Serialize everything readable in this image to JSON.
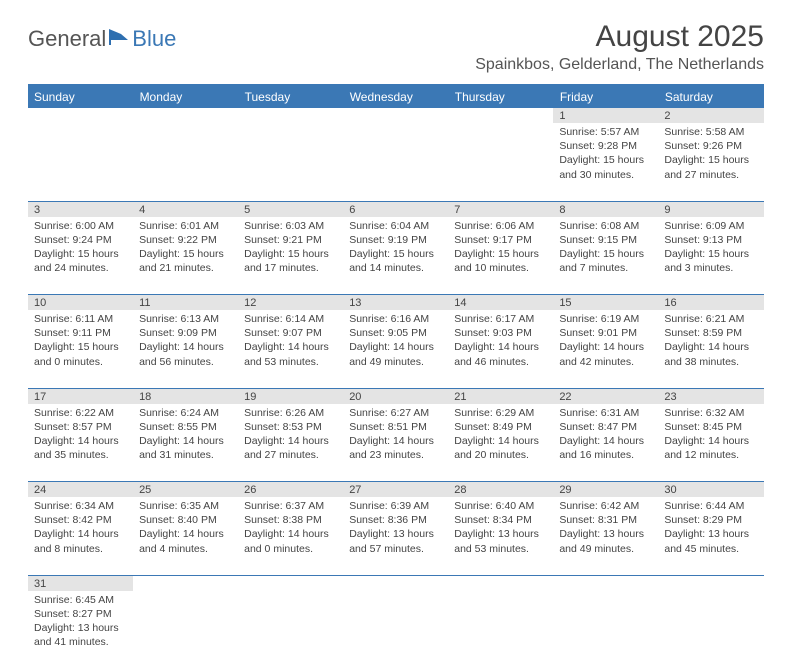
{
  "colors": {
    "header_blue": "#3b78b5",
    "daynum_bg": "#e4e4e4",
    "text": "#444444",
    "background": "#ffffff"
  },
  "logo": {
    "part1": "General",
    "part2": "Blue"
  },
  "title": "August 2025",
  "location": "Spainkbos, Gelderland, The Netherlands",
  "weekdays": [
    "Sunday",
    "Monday",
    "Tuesday",
    "Wednesday",
    "Thursday",
    "Friday",
    "Saturday"
  ],
  "weeks": [
    {
      "days": [
        {
          "num": "",
          "sunrise": "",
          "sunset": "",
          "daylight1": "",
          "daylight2": ""
        },
        {
          "num": "",
          "sunrise": "",
          "sunset": "",
          "daylight1": "",
          "daylight2": ""
        },
        {
          "num": "",
          "sunrise": "",
          "sunset": "",
          "daylight1": "",
          "daylight2": ""
        },
        {
          "num": "",
          "sunrise": "",
          "sunset": "",
          "daylight1": "",
          "daylight2": ""
        },
        {
          "num": "",
          "sunrise": "",
          "sunset": "",
          "daylight1": "",
          "daylight2": ""
        },
        {
          "num": "1",
          "sunrise": "Sunrise: 5:57 AM",
          "sunset": "Sunset: 9:28 PM",
          "daylight1": "Daylight: 15 hours",
          "daylight2": "and 30 minutes."
        },
        {
          "num": "2",
          "sunrise": "Sunrise: 5:58 AM",
          "sunset": "Sunset: 9:26 PM",
          "daylight1": "Daylight: 15 hours",
          "daylight2": "and 27 minutes."
        }
      ]
    },
    {
      "days": [
        {
          "num": "3",
          "sunrise": "Sunrise: 6:00 AM",
          "sunset": "Sunset: 9:24 PM",
          "daylight1": "Daylight: 15 hours",
          "daylight2": "and 24 minutes."
        },
        {
          "num": "4",
          "sunrise": "Sunrise: 6:01 AM",
          "sunset": "Sunset: 9:22 PM",
          "daylight1": "Daylight: 15 hours",
          "daylight2": "and 21 minutes."
        },
        {
          "num": "5",
          "sunrise": "Sunrise: 6:03 AM",
          "sunset": "Sunset: 9:21 PM",
          "daylight1": "Daylight: 15 hours",
          "daylight2": "and 17 minutes."
        },
        {
          "num": "6",
          "sunrise": "Sunrise: 6:04 AM",
          "sunset": "Sunset: 9:19 PM",
          "daylight1": "Daylight: 15 hours",
          "daylight2": "and 14 minutes."
        },
        {
          "num": "7",
          "sunrise": "Sunrise: 6:06 AM",
          "sunset": "Sunset: 9:17 PM",
          "daylight1": "Daylight: 15 hours",
          "daylight2": "and 10 minutes."
        },
        {
          "num": "8",
          "sunrise": "Sunrise: 6:08 AM",
          "sunset": "Sunset: 9:15 PM",
          "daylight1": "Daylight: 15 hours",
          "daylight2": "and 7 minutes."
        },
        {
          "num": "9",
          "sunrise": "Sunrise: 6:09 AM",
          "sunset": "Sunset: 9:13 PM",
          "daylight1": "Daylight: 15 hours",
          "daylight2": "and 3 minutes."
        }
      ]
    },
    {
      "days": [
        {
          "num": "10",
          "sunrise": "Sunrise: 6:11 AM",
          "sunset": "Sunset: 9:11 PM",
          "daylight1": "Daylight: 15 hours",
          "daylight2": "and 0 minutes."
        },
        {
          "num": "11",
          "sunrise": "Sunrise: 6:13 AM",
          "sunset": "Sunset: 9:09 PM",
          "daylight1": "Daylight: 14 hours",
          "daylight2": "and 56 minutes."
        },
        {
          "num": "12",
          "sunrise": "Sunrise: 6:14 AM",
          "sunset": "Sunset: 9:07 PM",
          "daylight1": "Daylight: 14 hours",
          "daylight2": "and 53 minutes."
        },
        {
          "num": "13",
          "sunrise": "Sunrise: 6:16 AM",
          "sunset": "Sunset: 9:05 PM",
          "daylight1": "Daylight: 14 hours",
          "daylight2": "and 49 minutes."
        },
        {
          "num": "14",
          "sunrise": "Sunrise: 6:17 AM",
          "sunset": "Sunset: 9:03 PM",
          "daylight1": "Daylight: 14 hours",
          "daylight2": "and 46 minutes."
        },
        {
          "num": "15",
          "sunrise": "Sunrise: 6:19 AM",
          "sunset": "Sunset: 9:01 PM",
          "daylight1": "Daylight: 14 hours",
          "daylight2": "and 42 minutes."
        },
        {
          "num": "16",
          "sunrise": "Sunrise: 6:21 AM",
          "sunset": "Sunset: 8:59 PM",
          "daylight1": "Daylight: 14 hours",
          "daylight2": "and 38 minutes."
        }
      ]
    },
    {
      "days": [
        {
          "num": "17",
          "sunrise": "Sunrise: 6:22 AM",
          "sunset": "Sunset: 8:57 PM",
          "daylight1": "Daylight: 14 hours",
          "daylight2": "and 35 minutes."
        },
        {
          "num": "18",
          "sunrise": "Sunrise: 6:24 AM",
          "sunset": "Sunset: 8:55 PM",
          "daylight1": "Daylight: 14 hours",
          "daylight2": "and 31 minutes."
        },
        {
          "num": "19",
          "sunrise": "Sunrise: 6:26 AM",
          "sunset": "Sunset: 8:53 PM",
          "daylight1": "Daylight: 14 hours",
          "daylight2": "and 27 minutes."
        },
        {
          "num": "20",
          "sunrise": "Sunrise: 6:27 AM",
          "sunset": "Sunset: 8:51 PM",
          "daylight1": "Daylight: 14 hours",
          "daylight2": "and 23 minutes."
        },
        {
          "num": "21",
          "sunrise": "Sunrise: 6:29 AM",
          "sunset": "Sunset: 8:49 PM",
          "daylight1": "Daylight: 14 hours",
          "daylight2": "and 20 minutes."
        },
        {
          "num": "22",
          "sunrise": "Sunrise: 6:31 AM",
          "sunset": "Sunset: 8:47 PM",
          "daylight1": "Daylight: 14 hours",
          "daylight2": "and 16 minutes."
        },
        {
          "num": "23",
          "sunrise": "Sunrise: 6:32 AM",
          "sunset": "Sunset: 8:45 PM",
          "daylight1": "Daylight: 14 hours",
          "daylight2": "and 12 minutes."
        }
      ]
    },
    {
      "days": [
        {
          "num": "24",
          "sunrise": "Sunrise: 6:34 AM",
          "sunset": "Sunset: 8:42 PM",
          "daylight1": "Daylight: 14 hours",
          "daylight2": "and 8 minutes."
        },
        {
          "num": "25",
          "sunrise": "Sunrise: 6:35 AM",
          "sunset": "Sunset: 8:40 PM",
          "daylight1": "Daylight: 14 hours",
          "daylight2": "and 4 minutes."
        },
        {
          "num": "26",
          "sunrise": "Sunrise: 6:37 AM",
          "sunset": "Sunset: 8:38 PM",
          "daylight1": "Daylight: 14 hours",
          "daylight2": "and 0 minutes."
        },
        {
          "num": "27",
          "sunrise": "Sunrise: 6:39 AM",
          "sunset": "Sunset: 8:36 PM",
          "daylight1": "Daylight: 13 hours",
          "daylight2": "and 57 minutes."
        },
        {
          "num": "28",
          "sunrise": "Sunrise: 6:40 AM",
          "sunset": "Sunset: 8:34 PM",
          "daylight1": "Daylight: 13 hours",
          "daylight2": "and 53 minutes."
        },
        {
          "num": "29",
          "sunrise": "Sunrise: 6:42 AM",
          "sunset": "Sunset: 8:31 PM",
          "daylight1": "Daylight: 13 hours",
          "daylight2": "and 49 minutes."
        },
        {
          "num": "30",
          "sunrise": "Sunrise: 6:44 AM",
          "sunset": "Sunset: 8:29 PM",
          "daylight1": "Daylight: 13 hours",
          "daylight2": "and 45 minutes."
        }
      ]
    },
    {
      "days": [
        {
          "num": "31",
          "sunrise": "Sunrise: 6:45 AM",
          "sunset": "Sunset: 8:27 PM",
          "daylight1": "Daylight: 13 hours",
          "daylight2": "and 41 minutes."
        },
        {
          "num": "",
          "sunrise": "",
          "sunset": "",
          "daylight1": "",
          "daylight2": ""
        },
        {
          "num": "",
          "sunrise": "",
          "sunset": "",
          "daylight1": "",
          "daylight2": ""
        },
        {
          "num": "",
          "sunrise": "",
          "sunset": "",
          "daylight1": "",
          "daylight2": ""
        },
        {
          "num": "",
          "sunrise": "",
          "sunset": "",
          "daylight1": "",
          "daylight2": ""
        },
        {
          "num": "",
          "sunrise": "",
          "sunset": "",
          "daylight1": "",
          "daylight2": ""
        },
        {
          "num": "",
          "sunrise": "",
          "sunset": "",
          "daylight1": "",
          "daylight2": ""
        }
      ]
    }
  ]
}
